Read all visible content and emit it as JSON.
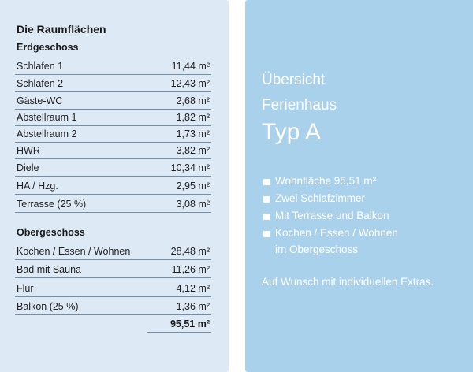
{
  "left": {
    "title": "Die Raumflächen",
    "ground_floor": {
      "heading": "Erdgeschoss",
      "rooms": [
        {
          "name": "Schlafen 1",
          "area": "11,44 m²"
        },
        {
          "name": "Schlafen 2",
          "area": "12,43 m²"
        },
        {
          "name": "Gäste-WC",
          "area": "2,68 m²"
        },
        {
          "name": "Abstellraum 1",
          "area": "1,82 m²"
        },
        {
          "name": "Abstellraum 2",
          "area": "1,73 m²"
        },
        {
          "name": "HWR",
          "area": "3,82 m²"
        },
        {
          "name": "Diele",
          "area": "10,34 m²"
        },
        {
          "name": "HA / Hzg.",
          "area": "2,95 m²"
        },
        {
          "name": "Terrasse (25 %)",
          "area": "3,08 m²"
        }
      ]
    },
    "upper_floor": {
      "heading": "Obergeschoss",
      "rooms": [
        {
          "name": "Kochen / Essen / Wohnen",
          "area": "28,48 m²"
        },
        {
          "name": "Bad mit Sauna",
          "area": "11,26 m²"
        },
        {
          "name": "Flur",
          "area": "4,12 m²"
        },
        {
          "name": "Balkon (25 %)",
          "area": "1,36 m²"
        }
      ]
    },
    "total": "95,51 m²"
  },
  "right": {
    "line1": "Übersicht",
    "line2": "Ferienhaus",
    "title": "Typ A",
    "features": [
      "Wohnfläche 95,51 m²",
      "Zwei Schlafzimmer",
      "Mit Terrasse und Balkon",
      "Kochen / Essen / Wohnen"
    ],
    "feature_continuation": "im Obergeschoss",
    "note": "Auf Wunsch mit individuellen Extras."
  },
  "colors": {
    "left_panel_bg": "#dde9f5",
    "right_panel_bg": "#a9d1ec",
    "rule": "#6f8fa6",
    "right_text": "#ffffff"
  }
}
